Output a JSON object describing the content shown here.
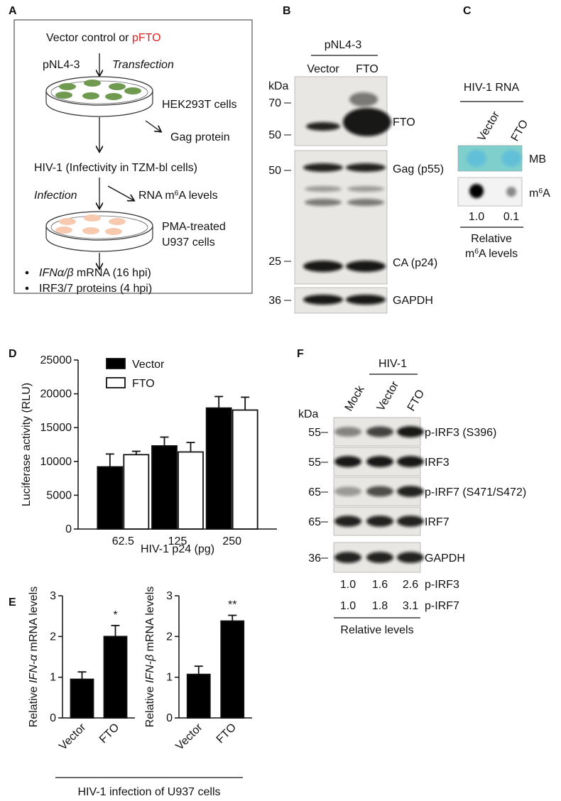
{
  "panel_labels": [
    "A",
    "B",
    "C",
    "D",
    "E",
    "F"
  ],
  "panel_a": {
    "line1": {
      "pre": "Vector control or ",
      "highlight": "pFTO"
    },
    "plasmid": "pNL4-3",
    "transfection": "Transfection",
    "cells1": "HEK293T cells",
    "gag": "Gag protein",
    "infectivity": "HIV-1 (Infectivity in TZM-bl cells)",
    "infection": "Infection",
    "rna": {
      "pre": "RNA m",
      "sup": "6",
      "post": "A levels"
    },
    "cells2": [
      "PMA-treated",
      "U937 cells"
    ],
    "bullets": [
      {
        "italic": "IFNα/β",
        "text": " mRNA (16 hpi)"
      },
      {
        "text": "IRF3/7 proteins (4 hpi)"
      }
    ]
  },
  "panel_b": {
    "header": "pNL4-3",
    "lanes": [
      "Vector",
      "FTO"
    ],
    "unit": "kDa",
    "markers": [
      "70",
      "50",
      "50",
      "25",
      "36"
    ],
    "bands": [
      "FTO",
      "Gag (p55)",
      "CA (p24)",
      "GAPDH"
    ]
  },
  "panel_c": {
    "header": "HIV-1 RNA",
    "lanes": [
      "Vector",
      "FTO"
    ],
    "rows": [
      "MB",
      {
        "pre": "m",
        "sup": "6",
        "post": "A"
      }
    ],
    "values": [
      "1.0",
      "0.1"
    ],
    "footer": [
      "Relative",
      {
        "pre": "m",
        "sup": "6",
        "post": "A levels"
      }
    ]
  },
  "panel_f": {
    "header": "HIV-1",
    "lanes": [
      "Mock",
      "Vector",
      "FTO"
    ],
    "unit": "kDa",
    "markers": [
      "55",
      "55",
      "65",
      "65",
      "36"
    ],
    "bands": [
      "p-IRF3 (S396)",
      "IRF3",
      "p-IRF7 (S471/S472)",
      "IRF7",
      "GAPDH"
    ],
    "quant": [
      {
        "values": [
          "1.0",
          "1.6",
          "2.6"
        ],
        "name": "p-IRF3"
      },
      {
        "values": [
          "1.0",
          "1.8",
          "3.1"
        ],
        "name": "p-IRF7"
      }
    ],
    "footer": "Relative levels"
  },
  "panel_e_caption": "HIV-1 infection of U937 cells",
  "chart_data": [
    {
      "type": "bar",
      "ylabel": "Luciferase activity (RLU)",
      "xlabel": "HIV-1 p24 (pg)",
      "categories": [
        "62.5",
        "125",
        "250"
      ],
      "series": [
        {
          "name": "Vector",
          "color": "#000000",
          "values": [
            9200,
            12300,
            17900
          ],
          "errors": [
            1900,
            1300,
            1700
          ]
        },
        {
          "name": "FTO",
          "color": "#ffffff",
          "values": [
            11000,
            11400,
            17600
          ],
          "errors": [
            500,
            1400,
            1900
          ]
        }
      ],
      "ylim": [
        0,
        25000
      ],
      "yticks": [
        0,
        5000,
        10000,
        15000,
        20000,
        25000
      ],
      "legend": "upper left"
    },
    {
      "type": "bar",
      "ylabel": {
        "pre": "Relative ",
        "italic": "IFN-α",
        "post": " mRNA levels"
      },
      "categories": [
        "Vector",
        "FTO"
      ],
      "values": [
        0.95,
        2.0
      ],
      "errors": [
        0.18,
        0.27
      ],
      "annotations": [
        null,
        "*"
      ],
      "color": "#000000",
      "ylim": [
        0,
        3
      ],
      "yticks": [
        0,
        1,
        2,
        3
      ]
    },
    {
      "type": "bar",
      "ylabel": {
        "pre": "Relative ",
        "italic": "IFN-β",
        "post": " mRNA levels"
      },
      "categories": [
        "Vector",
        "FTO"
      ],
      "values": [
        1.07,
        2.38
      ],
      "errors": [
        0.2,
        0.14
      ],
      "annotations": [
        null,
        "**"
      ],
      "color": "#000000",
      "ylim": [
        0,
        3
      ],
      "yticks": [
        0,
        1,
        2,
        3
      ]
    }
  ]
}
